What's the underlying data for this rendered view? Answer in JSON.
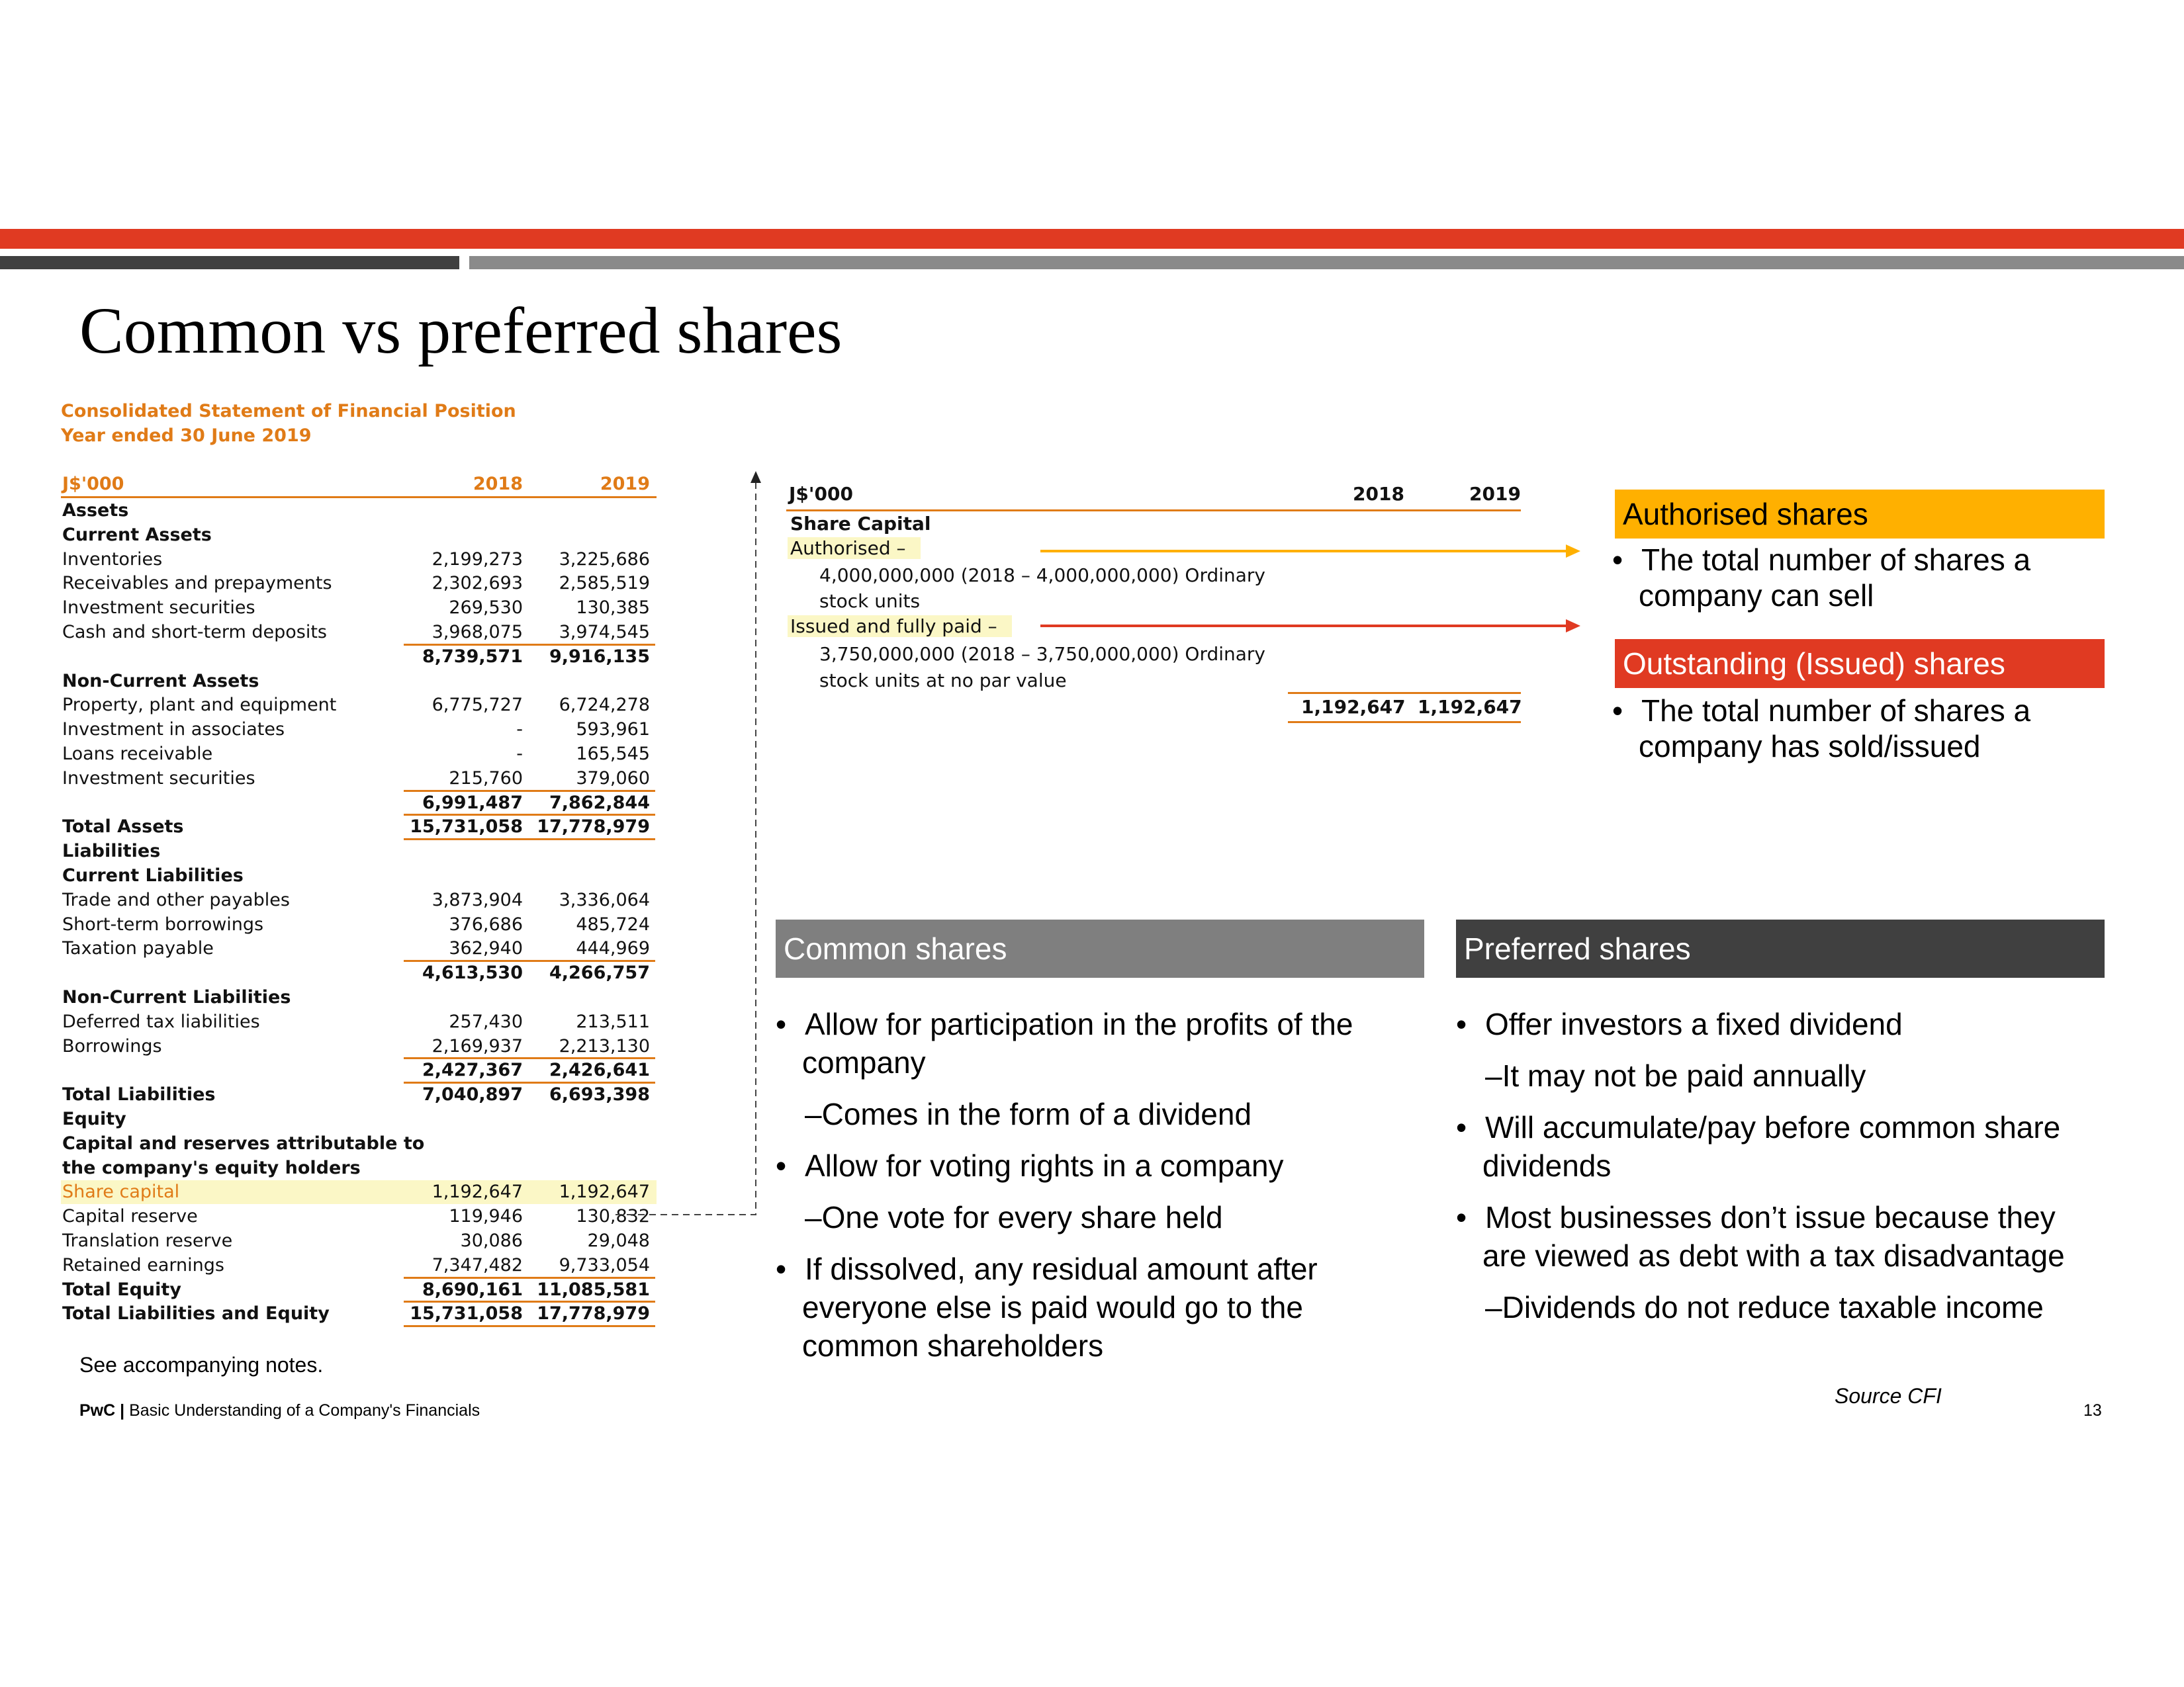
{
  "slide": {
    "title": "Common vs preferred shares",
    "footnote": "See accompanying notes.",
    "footer_brand": "PwC |",
    "footer_text": "Basic Understanding of a Company's Financials",
    "source": "Source CFI",
    "page_number": "13"
  },
  "statement": {
    "heading_line1": "Consolidated Statement of Financial Position",
    "heading_line2": "Year ended 30 June 2019",
    "currency": "J$'000",
    "col1": "2018",
    "col2": "2019",
    "rows": [
      {
        "label": "Assets",
        "v1": "",
        "v2": "",
        "bold": true
      },
      {
        "label": "Current Assets",
        "v1": "",
        "v2": "",
        "bold": true
      },
      {
        "label": "Inventories",
        "v1": "2,199,273",
        "v2": "3,225,686"
      },
      {
        "label": "Receivables and prepayments",
        "v1": "2,302,693",
        "v2": "2,585,519"
      },
      {
        "label": "Investment securities",
        "v1": "269,530",
        "v2": "130,385"
      },
      {
        "label": "Cash and short-term deposits",
        "v1": "3,968,075",
        "v2": "3,974,545",
        "under": true
      },
      {
        "label": "",
        "v1": "8,739,571",
        "v2": "9,916,135",
        "bold": true
      },
      {
        "label": "Non-Current Assets",
        "v1": "",
        "v2": "",
        "bold": true
      },
      {
        "label": "Property, plant and equipment",
        "v1": "6,775,727",
        "v2": "6,724,278"
      },
      {
        "label": "Investment in associates",
        "v1": "-",
        "v2": "593,961"
      },
      {
        "label": "Loans receivable",
        "v1": "-",
        "v2": "165,545"
      },
      {
        "label": "Investment securities",
        "v1": "215,760",
        "v2": "379,060",
        "under": true
      },
      {
        "label": "",
        "v1": "6,991,487",
        "v2": "7,862,844",
        "bold": true,
        "under": true
      },
      {
        "label": "Total Assets",
        "v1": "15,731,058",
        "v2": "17,778,979",
        "bold": true,
        "under": true
      },
      {
        "label": "Liabilities",
        "v1": "",
        "v2": "",
        "bold": true
      },
      {
        "label": "Current Liabilities",
        "v1": "",
        "v2": "",
        "bold": true
      },
      {
        "label": "Trade and other payables",
        "v1": "3,873,904",
        "v2": "3,336,064"
      },
      {
        "label": "Short-term borrowings",
        "v1": "376,686",
        "v2": "485,724"
      },
      {
        "label": "Taxation payable",
        "v1": "362,940",
        "v2": "444,969",
        "under": true
      },
      {
        "label": "",
        "v1": "4,613,530",
        "v2": "4,266,757",
        "bold": true
      },
      {
        "label": "Non-Current Liabilities",
        "v1": "",
        "v2": "",
        "bold": true
      },
      {
        "label": "Deferred tax liabilities",
        "v1": "257,430",
        "v2": "213,511"
      },
      {
        "label": "Borrowings",
        "v1": "2,169,937",
        "v2": "2,213,130",
        "under": true
      },
      {
        "label": "",
        "v1": "2,427,367",
        "v2": "2,426,641",
        "bold": true,
        "under": true
      },
      {
        "label": "Total Liabilities",
        "v1": "7,040,897",
        "v2": "6,693,398",
        "bold": true
      },
      {
        "label": "Equity",
        "v1": "",
        "v2": "",
        "bold": true
      },
      {
        "label": "Capital and reserves attributable to",
        "v1": "",
        "v2": "",
        "bold": true
      },
      {
        "label": "the company's equity holders",
        "v1": "",
        "v2": "",
        "bold": true
      },
      {
        "label": "Share capital",
        "v1": "1,192,647",
        "v2": "1,192,647",
        "highlight": true
      },
      {
        "label": "Capital reserve",
        "v1": "119,946",
        "v2": "130,832"
      },
      {
        "label": "Translation reserve",
        "v1": "30,086",
        "v2": "29,048"
      },
      {
        "label": "Retained earnings",
        "v1": "7,347,482",
        "v2": "9,733,054",
        "under": true
      },
      {
        "label": "Total Equity",
        "v1": "8,690,161",
        "v2": "11,085,581",
        "bold": true,
        "under": true
      },
      {
        "label": "Total Liabilities and Equity",
        "v1": "15,731,058",
        "v2": "17,778,979",
        "bold": true,
        "under": true
      }
    ]
  },
  "share_capital": {
    "currency": "J$'000",
    "col1": "2018",
    "col2": "2019",
    "heading": "Share Capital",
    "authorised_label": "Authorised –",
    "authorised_line1": "4,000,000,000 (2018 – 4,000,000,000) Ordinary",
    "authorised_line2": "stock units",
    "issued_label": "Issued and fully paid –",
    "issued_line1": "3,750,000,000 (2018 – 3,750,000,000) Ordinary",
    "issued_line2": "stock units at no par value",
    "total_2018": "1,192,647",
    "total_2019": "1,192,647"
  },
  "authorised": {
    "title": "Authorised shares",
    "bullet_line1": "The total number of shares a",
    "bullet_line2": "company can sell",
    "color": "#ffb000"
  },
  "outstanding": {
    "title": "Outstanding (Issued) shares",
    "bullet_line1": "The total number of shares a",
    "bullet_line2": "company has sold/issued",
    "color": "#e03a22"
  },
  "common": {
    "title": "Common shares",
    "b1_line1": "Allow for participation in the profits of the",
    "b1_line2": "company",
    "b1_sub": "Comes in the form of a dividend",
    "b2": "Allow for voting rights in a company",
    "b2_sub": "One vote for every share held",
    "b3_line1": "If dissolved, any residual amount after",
    "b3_line2": "everyone else is paid would go to the",
    "b3_line3": "common shareholders"
  },
  "preferred": {
    "title": "Preferred shares",
    "b1": "Offer investors a fixed dividend",
    "b1_sub": "It may not be paid annually",
    "b2_line1": "Will accumulate/pay before common share",
    "b2_line2": "dividends",
    "b3_line1": "Most businesses don’t issue because they",
    "b3_line2": "are viewed as debt with a tax disadvantage",
    "b3_sub": "Dividends do not reduce taxable income"
  }
}
